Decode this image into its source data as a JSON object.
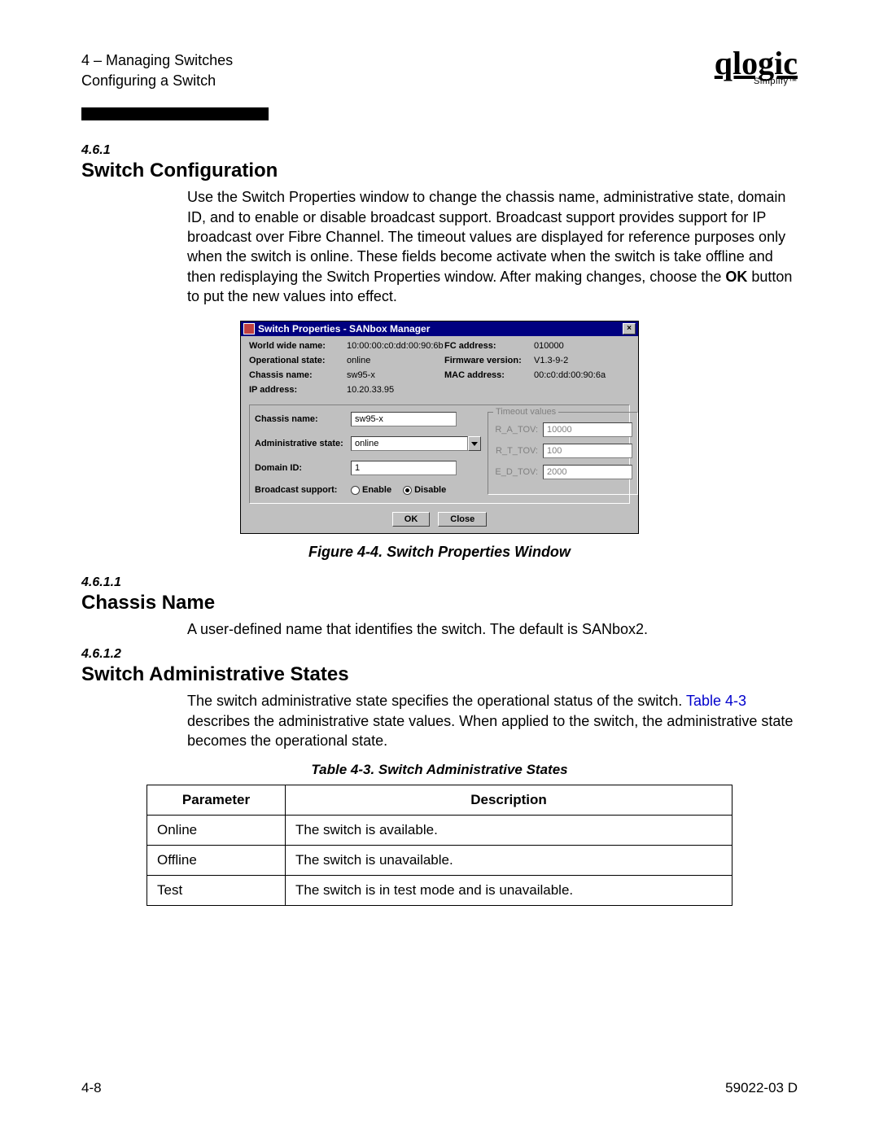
{
  "header": {
    "chapter": "4 – Managing Switches",
    "section": "Configuring a Switch",
    "logo_script": "qlogic",
    "logo_sub": "Simplify™"
  },
  "sec1": {
    "num": "4.6.1",
    "title": "Switch Configuration",
    "para_a": "Use the Switch Properties window to change the chassis name, administrative state, domain ID, and to enable or disable broadcast support. Broadcast support provides support for IP broadcast over Fibre Channel. The timeout values are displayed for reference purposes only when the switch is online. These fields become activate when the switch is take offline and then redisplaying the Switch Properties window. After making changes, choose the ",
    "para_bold": "OK",
    "para_b": " button to put the new values into effect."
  },
  "dialog": {
    "title": "Switch Properties - SANbox Manager",
    "info": {
      "wwn_lbl": "World wide name:",
      "wwn": "10:00:00:c0:dd:00:90:6b",
      "fcaddr_lbl": "FC address:",
      "fcaddr": "010000",
      "opstate_lbl": "Operational state:",
      "opstate": "online",
      "fw_lbl": "Firmware version:",
      "fw": "V1.3-9-2",
      "chassis_lbl": "Chassis name:",
      "chassis": "sw95-x",
      "mac_lbl": "MAC address:",
      "mac": "00:c0:dd:00:90:6a",
      "ip_lbl": "IP address:",
      "ip": "10.20.33.95"
    },
    "form": {
      "chassis_lbl": "Chassis name:",
      "chassis_val": "sw95-x",
      "admin_lbl": "Administrative state:",
      "admin_val": "online",
      "domain_lbl": "Domain ID:",
      "domain_val": "1",
      "bcast_lbl": "Broadcast support:",
      "enable_lbl": "Enable",
      "disable_lbl": "Disable"
    },
    "timeout": {
      "legend": "Timeout values",
      "ra_lbl": "R_A_TOV:",
      "ra_val": "10000",
      "rt_lbl": "R_T_TOV:",
      "rt_val": "100",
      "ed_lbl": "E_D_TOV:",
      "ed_val": "2000"
    },
    "ok": "OK",
    "close": "Close"
  },
  "fig_caption": "Figure 4-4.  Switch Properties Window",
  "sec2": {
    "num": "4.6.1.1",
    "title": "Chassis Name",
    "para": "A user-defined name that identifies the switch. The default is SANbox2."
  },
  "sec3": {
    "num": "4.6.1.2",
    "title": "Switch Administrative States",
    "para_a": "The switch administrative state specifies the operational status of the switch. ",
    "link": "Table 4-3",
    "para_b": " describes the administrative state values. When applied to the switch, the administrative state becomes the operational state."
  },
  "table": {
    "caption": "Table 4-3. Switch Administrative States",
    "col1": "Parameter",
    "col2": "Description",
    "rows": [
      {
        "p": "Online",
        "d": "The switch is available."
      },
      {
        "p": "Offline",
        "d": "The switch is unavailable."
      },
      {
        "p": "Test",
        "d": "The switch is in test mode and is unavailable."
      }
    ]
  },
  "footer": {
    "left": "4-8",
    "right": "59022-03  D"
  }
}
